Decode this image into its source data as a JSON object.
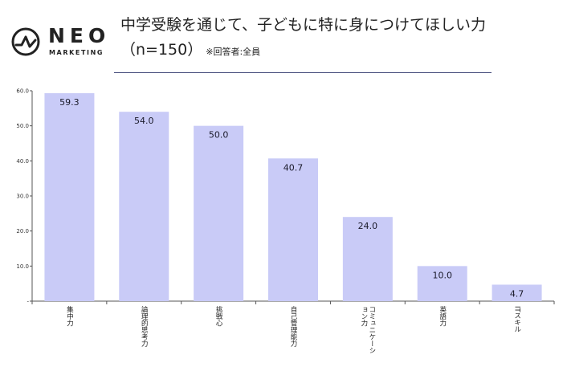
{
  "brand": {
    "name": "NEO",
    "sub": "MARKETING"
  },
  "title": {
    "line1": "中学受験を通じて、子どもに特に身につけてほしい力",
    "line2": "（n=150）",
    "note": "※回答者:全員"
  },
  "colors": {
    "bar": "#c9cbf7",
    "rule": "#444a7a",
    "axis": "#555555"
  },
  "chart_data": {
    "type": "bar",
    "title": "中学受験を通じて、子どもに特に身につけてほしい力",
    "categories": [
      "集中力",
      "論理的思考力",
      "挑戦心",
      "自己管理能力",
      "コミュニケーション力",
      "英語力",
      "ITスキル"
    ],
    "category_lines": [
      [
        "集中力"
      ],
      [
        "論理的思考力"
      ],
      [
        "挑戦心"
      ],
      [
        "自己管理能力"
      ],
      [
        "コミュニケーシ",
        "ョン力"
      ],
      [
        "英語力"
      ],
      [
        "ITスキル"
      ]
    ],
    "values": [
      59.3,
      54.0,
      50.0,
      40.7,
      24.0,
      10.0,
      4.7
    ],
    "value_labels": [
      "59.3",
      "54.0",
      "50.0",
      "40.7",
      "24.0",
      "10.0",
      "4.7"
    ],
    "yticks": [
      "-",
      "10.0",
      "20.0",
      "30.0",
      "40.0",
      "50.0",
      "60.0"
    ],
    "ylim": [
      0,
      60
    ],
    "xlabel": "",
    "ylabel": ""
  }
}
